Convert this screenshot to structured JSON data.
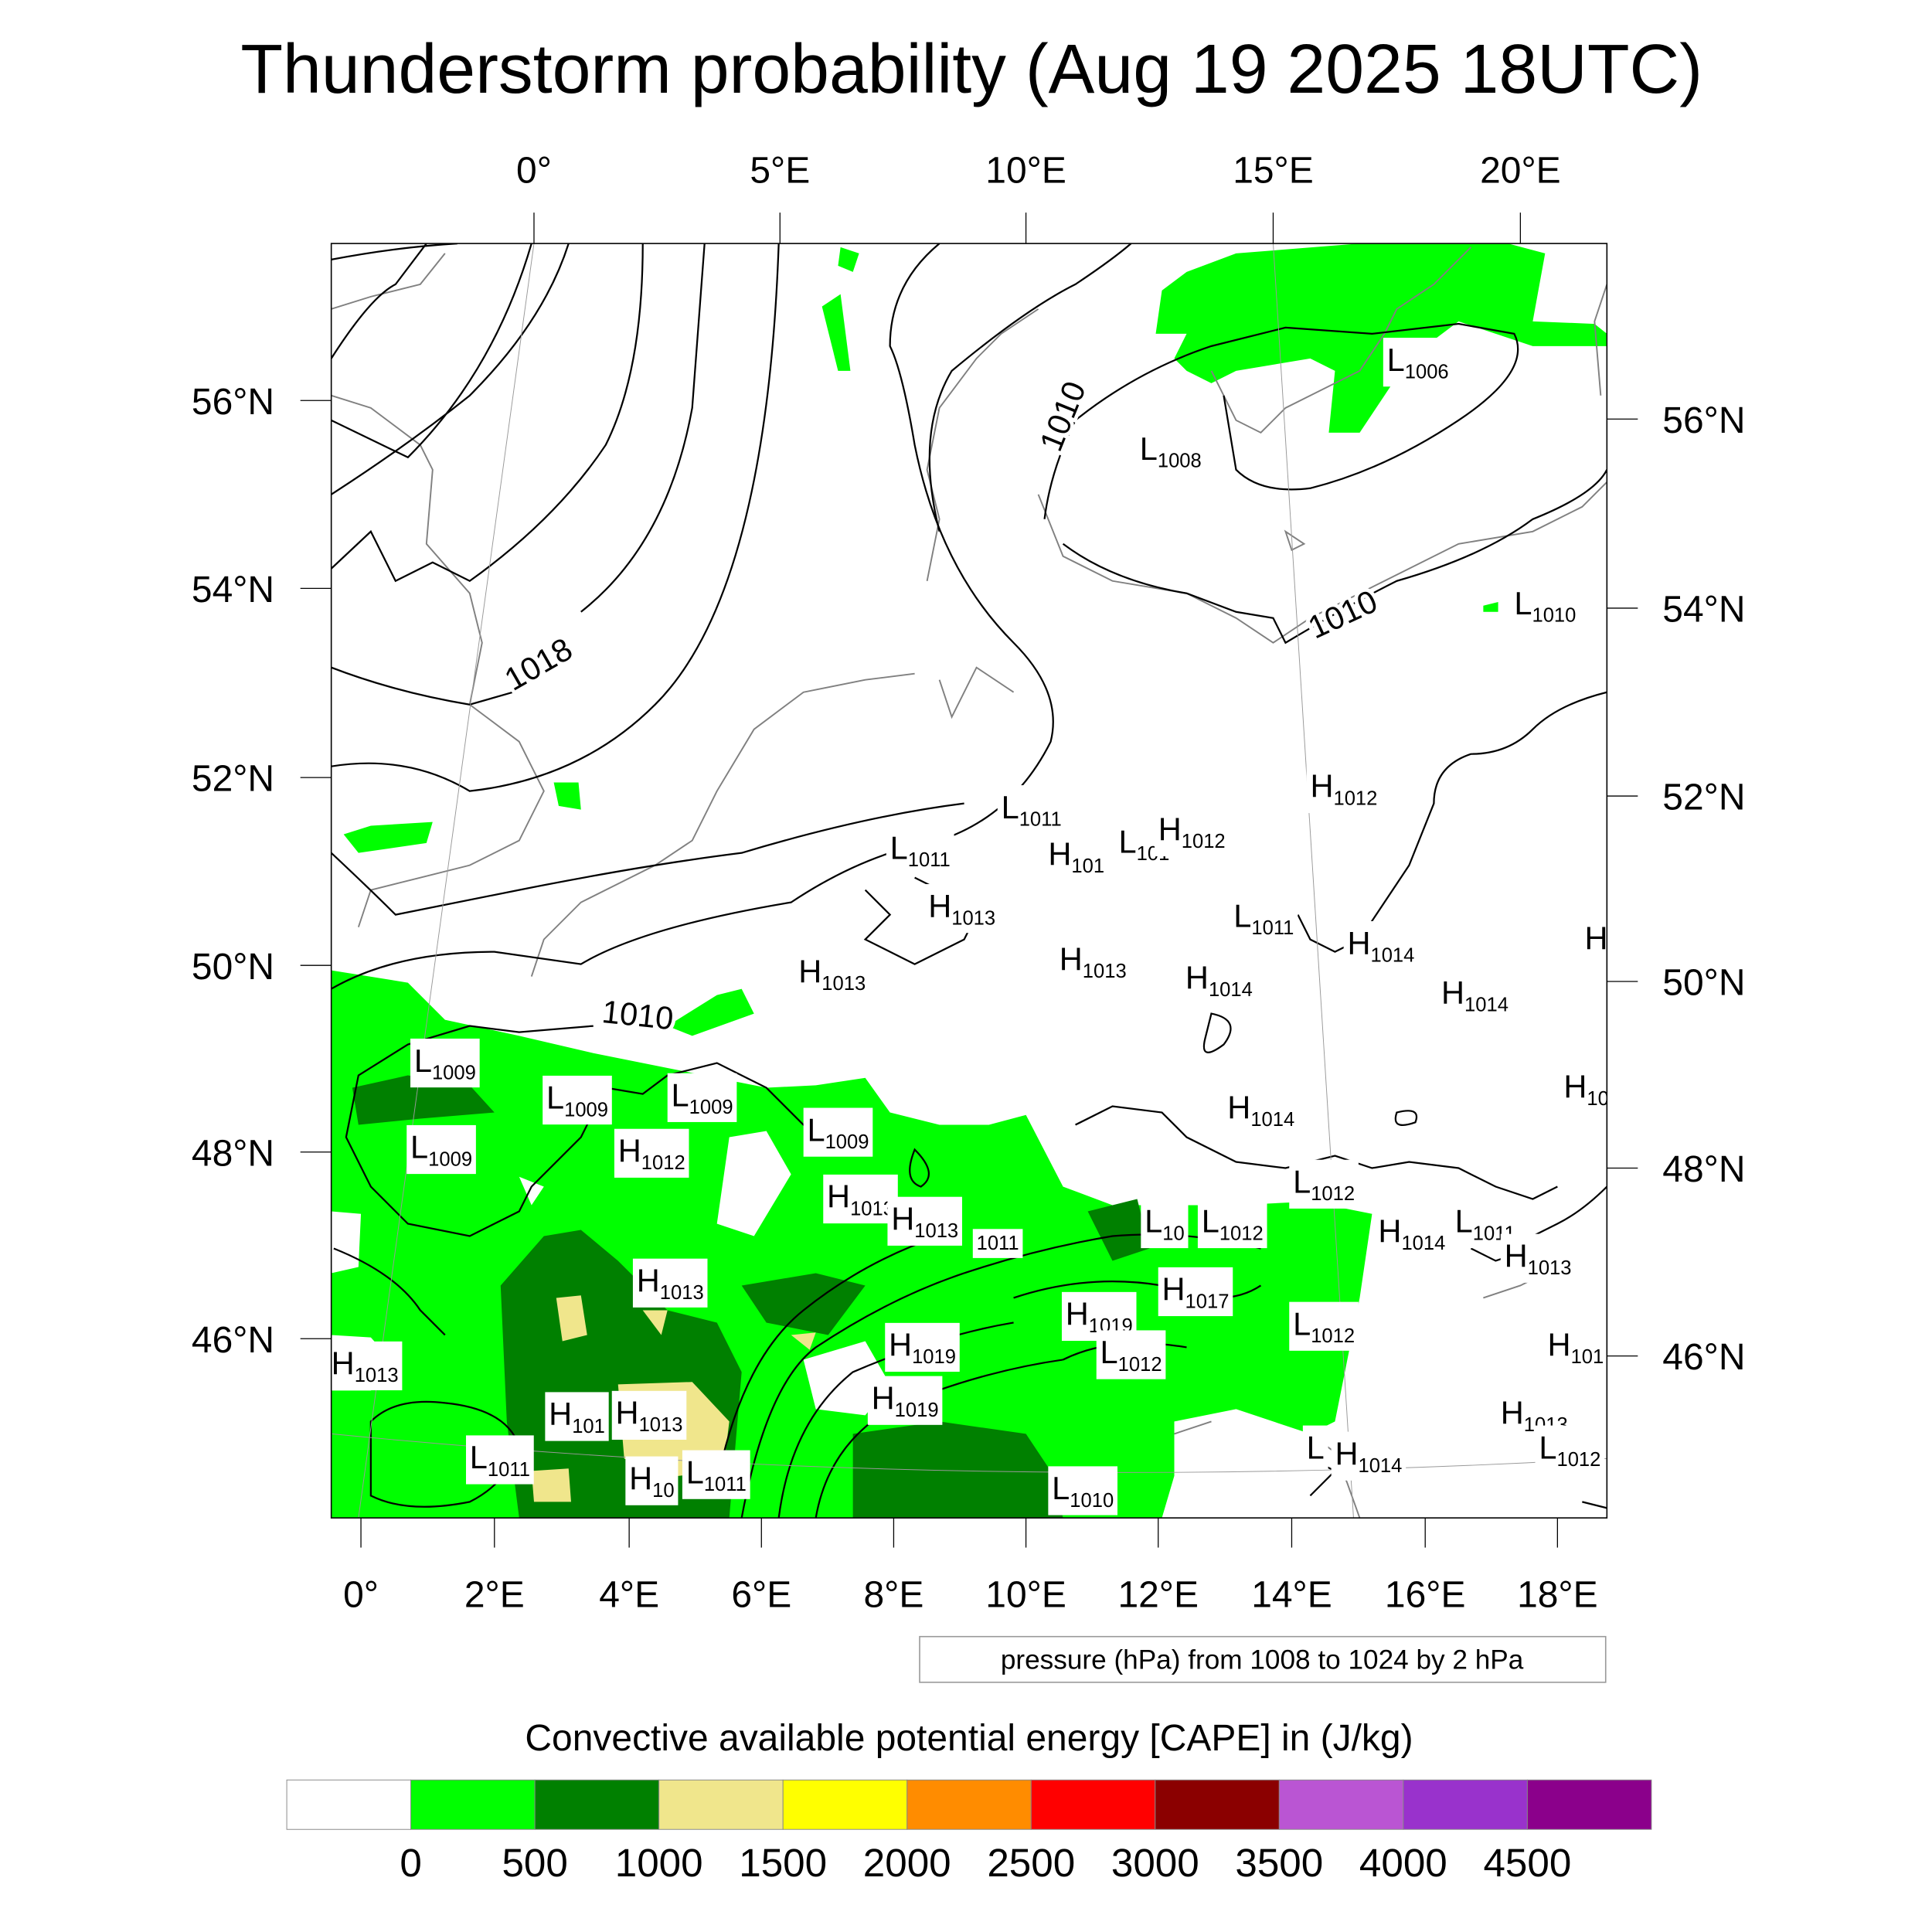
{
  "title": "Thunderstorm probability (Aug 19 2025 18UTC)",
  "axes": {
    "top_lon": [
      "0°",
      "5°E",
      "10°E",
      "15°E",
      "20°E"
    ],
    "left_lat": [
      "56°N",
      "54°N",
      "52°N",
      "50°N",
      "48°N",
      "46°N"
    ],
    "right_lat": [
      "56°N",
      "54°N",
      "52°N",
      "50°N",
      "48°N",
      "46°N"
    ],
    "bottom_lon": [
      "0°",
      "2°E",
      "4°E",
      "6°E",
      "8°E",
      "10°E",
      "12°E",
      "14°E",
      "16°E",
      "18°E"
    ]
  },
  "contour_labels": [
    "1010",
    "1010",
    "1018",
    "1010"
  ],
  "pressure_centers": [
    {
      "t": "L",
      "v": "1006"
    },
    {
      "t": "L",
      "v": "1008"
    },
    {
      "t": "L",
      "v": "1010"
    },
    {
      "t": "H",
      "v": "1012"
    },
    {
      "t": "L",
      "v": "1011"
    },
    {
      "t": "L",
      "v": "1011"
    },
    {
      "t": "H",
      "v": "101"
    },
    {
      "t": "L",
      "v": "101"
    },
    {
      "t": "H",
      "v": "1012"
    },
    {
      "t": "H",
      "v": "1013"
    },
    {
      "t": "L",
      "v": "1011"
    },
    {
      "t": "H",
      "v": "1014"
    },
    {
      "t": "H",
      "v": "1013"
    },
    {
      "t": "H",
      "v": "1013"
    },
    {
      "t": "H",
      "v": "1014"
    },
    {
      "t": "H",
      "v": "1014"
    },
    {
      "t": "H",
      "v": ""
    },
    {
      "t": "H",
      "v": "10"
    },
    {
      "t": "L",
      "v": "1009"
    },
    {
      "t": "L",
      "v": "1009"
    },
    {
      "t": "L",
      "v": "1009"
    },
    {
      "t": "L",
      "v": "1009"
    },
    {
      "t": "L",
      "v": "1009"
    },
    {
      "t": "H",
      "v": "1012"
    },
    {
      "t": "H",
      "v": "1014"
    },
    {
      "t": "L",
      "v": "1012"
    },
    {
      "t": "H",
      "v": "1013"
    },
    {
      "t": "H",
      "v": "1013"
    },
    {
      "t": "",
      "v": "1011"
    },
    {
      "t": "L",
      "v": "10"
    },
    {
      "t": "L",
      "v": "1012"
    },
    {
      "t": "H",
      "v": "1014"
    },
    {
      "t": "L",
      "v": "1011"
    },
    {
      "t": "H",
      "v": "1013"
    },
    {
      "t": "H",
      "v": "1013"
    },
    {
      "t": "H",
      "v": "1017"
    },
    {
      "t": "H",
      "v": "1019"
    },
    {
      "t": "L",
      "v": "1012"
    },
    {
      "t": "H",
      "v": "1019"
    },
    {
      "t": "L",
      "v": "1012"
    },
    {
      "t": "H",
      "v": "101"
    },
    {
      "t": "H",
      "v": "1013"
    },
    {
      "t": "H",
      "v": "1019"
    },
    {
      "t": "H",
      "v": "101"
    },
    {
      "t": "H",
      "v": "1013"
    },
    {
      "t": "H",
      "v": "1013"
    },
    {
      "t": "L",
      "v": "1011"
    },
    {
      "t": "H",
      "v": "10"
    },
    {
      "t": "L",
      "v": "1011"
    },
    {
      "t": "L",
      "v": "1010"
    },
    {
      "t": "L",
      "v": ""
    },
    {
      "t": "H",
      "v": "1014"
    },
    {
      "t": "L",
      "v": "1012"
    }
  ],
  "info_box": "pressure (hPa) from 1008 to 1024 by 2 hPa",
  "colorbar": {
    "title": "Convective available potential energy [CAPE] in (J/kg)",
    "colors": [
      "#ffffff",
      "#00ff00",
      "#008000",
      "#f0e68c",
      "#ffff00",
      "#ff8c00",
      "#ff0000",
      "#8b0000",
      "#ba55d3",
      "#9932cc",
      "#8b008b"
    ],
    "labels": [
      "0",
      "500",
      "1000",
      "1500",
      "2000",
      "2500",
      "3000",
      "3500",
      "4000",
      "4500"
    ]
  }
}
